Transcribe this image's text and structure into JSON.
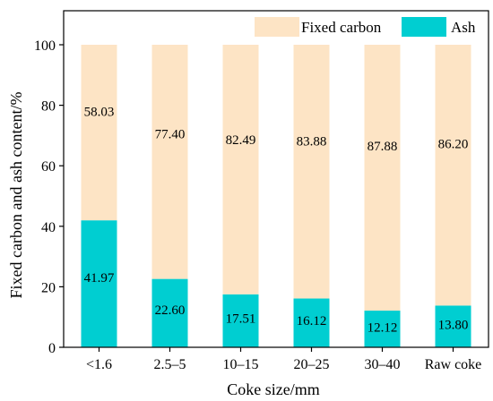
{
  "chart_data": {
    "type": "bar",
    "stacked": true,
    "title": "",
    "xlabel": "Coke size/mm",
    "ylabel": "Fixed carbon and ash content/%",
    "ylim": [
      0,
      100
    ],
    "yticks": [
      "0",
      "20",
      "40",
      "60",
      "80",
      "100"
    ],
    "categories": [
      "<1.6",
      "2.5–5",
      "10–15",
      "20–25",
      "30–40",
      "Raw coke"
    ],
    "series": [
      {
        "name": "Ash",
        "color": "#00CED1",
        "values": [
          41.97,
          22.6,
          17.51,
          16.12,
          12.12,
          13.8
        ],
        "labels": [
          "41.97",
          "22.60",
          "17.51",
          "16.12",
          "12.12",
          "13.80"
        ]
      },
      {
        "name": "Fixed carbon",
        "color": "#FDE4C5",
        "values": [
          58.03,
          77.4,
          82.49,
          83.88,
          87.88,
          86.2
        ],
        "labels": [
          "58.03",
          "77.40",
          "82.49",
          "83.88",
          "87.88",
          "86.20"
        ]
      }
    ],
    "legend": {
      "placement": "top-right",
      "order": [
        "Fixed carbon",
        "Ash"
      ]
    },
    "grid": false
  }
}
